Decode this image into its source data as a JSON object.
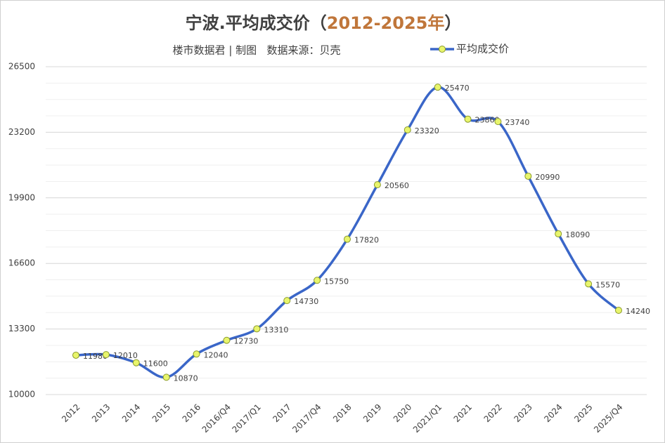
{
  "chart_data": {
    "type": "line",
    "title": [
      "宁波.平均成交价（",
      "2012-2025年",
      "）"
    ],
    "subtitle": "楼市数据君 | 制图   数据来源：贝壳",
    "categories": [
      "2012",
      "2013",
      "2014",
      "2015",
      "2016",
      "2016/Q4",
      "2017/Q1",
      "2017",
      "2017/Q4",
      "2018",
      "2019",
      "2020",
      "2021/Q1",
      "2021",
      "2022",
      "2023",
      "2024",
      "2025",
      "2025/Q4"
    ],
    "series": [
      {
        "name": "平均成交价",
        "color": "#3a66c8",
        "values": [
          11980,
          12010,
          11600,
          10870,
          12040,
          12730,
          13310,
          14730,
          15750,
          17820,
          20560,
          23320,
          25470,
          23860,
          23740,
          20990,
          18090,
          15570,
          14240
        ]
      }
    ],
    "ylim": [
      10000,
      26500
    ],
    "yticks": [
      10000,
      13300,
      16600,
      19900,
      23200,
      26500
    ],
    "grid": true,
    "legend": "top-right"
  }
}
